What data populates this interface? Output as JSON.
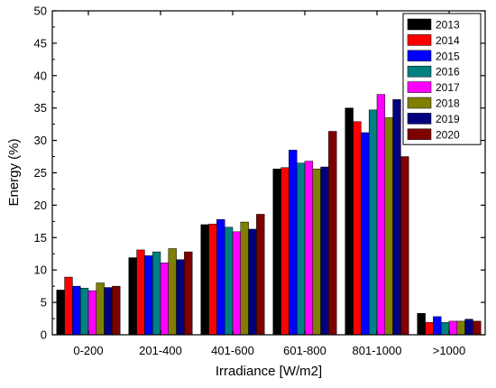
{
  "chart_data": {
    "type": "bar",
    "title": "",
    "xlabel": "Irradiance [W/m2]",
    "ylabel": "Energy (%)",
    "ylim": [
      0,
      50
    ],
    "yticks": [
      0,
      5,
      10,
      15,
      20,
      25,
      30,
      35,
      40,
      45,
      50
    ],
    "categories": [
      "0-200",
      "201-400",
      "401-600",
      "601-800",
      "801-1000",
      ">1000"
    ],
    "legend_position": "top-right",
    "grid": false,
    "series": [
      {
        "name": "2013",
        "color": "#000000",
        "values": [
          6.9,
          11.9,
          17.0,
          25.6,
          35.0,
          3.3
        ]
      },
      {
        "name": "2014",
        "color": "#ff0000",
        "values": [
          8.9,
          13.1,
          17.1,
          25.8,
          32.9,
          1.9
        ]
      },
      {
        "name": "2015",
        "color": "#0000ff",
        "values": [
          7.5,
          12.2,
          17.8,
          28.5,
          31.2,
          2.8
        ]
      },
      {
        "name": "2016",
        "color": "#008080",
        "values": [
          7.2,
          12.8,
          16.6,
          26.5,
          34.7,
          1.9
        ]
      },
      {
        "name": "2017",
        "color": "#ff00ff",
        "values": [
          6.8,
          11.1,
          15.9,
          26.8,
          37.1,
          2.1
        ]
      },
      {
        "name": "2018",
        "color": "#808000",
        "values": [
          8.0,
          13.3,
          17.4,
          25.6,
          33.5,
          2.1
        ]
      },
      {
        "name": "2019",
        "color": "#000080",
        "values": [
          7.3,
          11.6,
          16.3,
          25.9,
          36.3,
          2.4
        ]
      },
      {
        "name": "2020",
        "color": "#800000",
        "values": [
          7.5,
          12.8,
          18.6,
          31.4,
          27.5,
          2.1
        ]
      }
    ]
  }
}
